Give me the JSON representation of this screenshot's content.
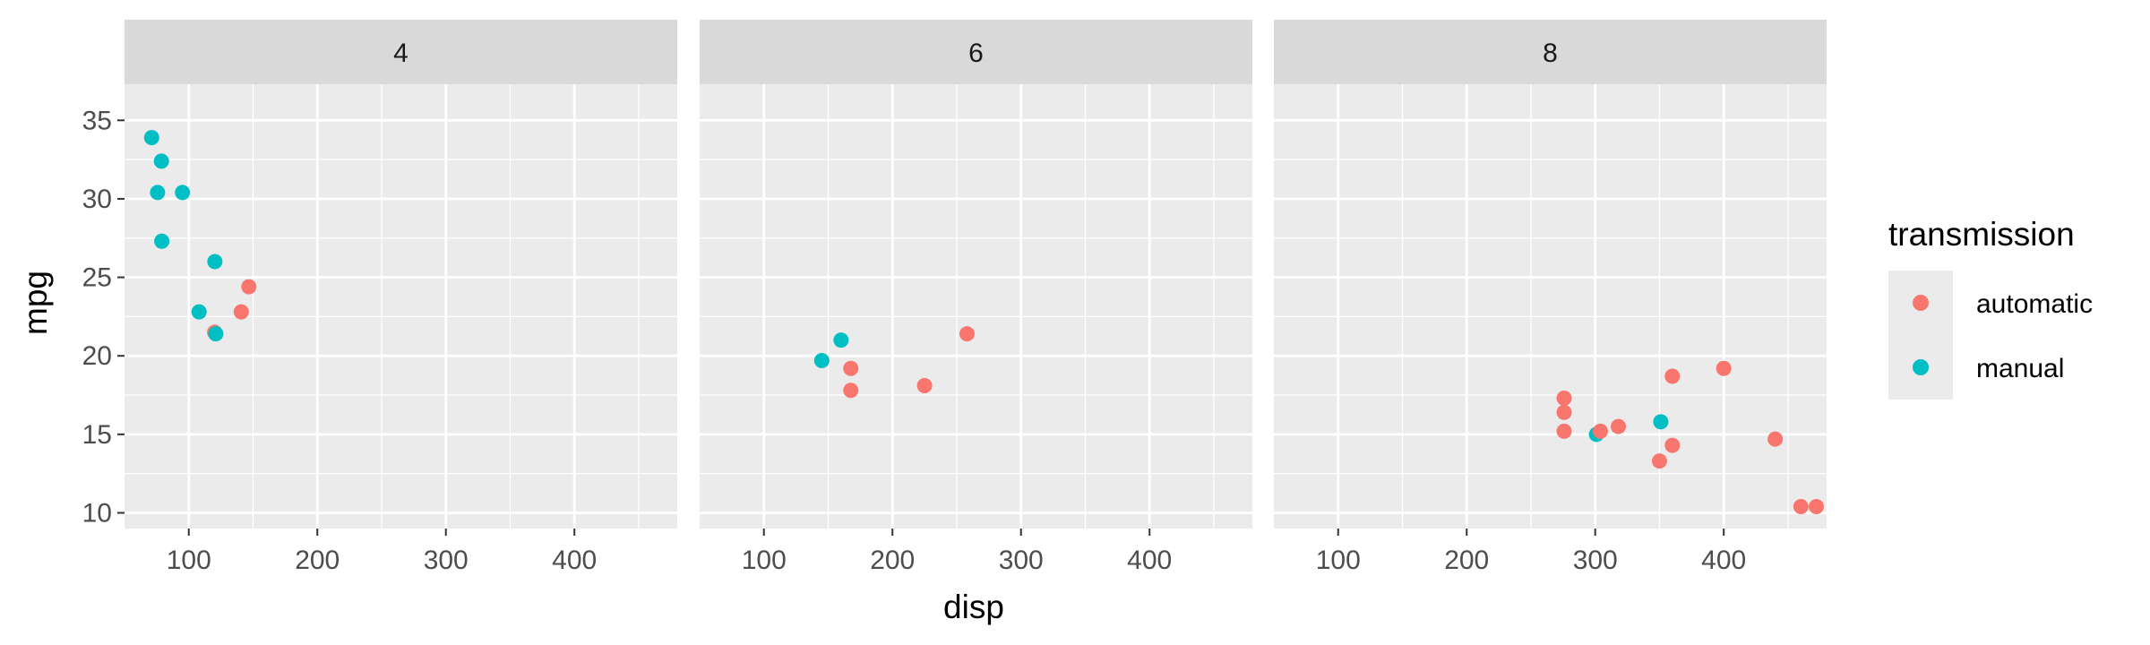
{
  "chart_data": {
    "type": "scatter",
    "xlabel": "disp",
    "ylabel": "mpg",
    "xlim": [
      50,
      480
    ],
    "ylim": [
      9,
      37.3
    ],
    "x_ticks": [
      "100",
      "200",
      "300",
      "400"
    ],
    "x_tick_values": [
      100,
      200,
      300,
      400
    ],
    "y_ticks": [
      "10",
      "15",
      "20",
      "25",
      "30",
      "35"
    ],
    "y_tick_values": [
      10,
      15,
      20,
      25,
      30,
      35
    ],
    "grid": true,
    "legend": {
      "title": "transmission",
      "placement": "right",
      "entries": [
        {
          "label": "automatic",
          "color": "#F8766D"
        },
        {
          "label": "manual",
          "color": "#00BFC4"
        }
      ]
    },
    "facets": [
      {
        "label": "4",
        "points": [
          {
            "x": 71.1,
            "y": 33.9,
            "group": "manual"
          },
          {
            "x": 75.7,
            "y": 30.4,
            "group": "manual"
          },
          {
            "x": 78.7,
            "y": 32.4,
            "group": "manual"
          },
          {
            "x": 79.0,
            "y": 27.3,
            "group": "manual"
          },
          {
            "x": 95.1,
            "y": 30.4,
            "group": "manual"
          },
          {
            "x": 108.0,
            "y": 22.8,
            "group": "manual"
          },
          {
            "x": 120.1,
            "y": 21.5,
            "group": "automatic"
          },
          {
            "x": 120.3,
            "y": 26.0,
            "group": "manual"
          },
          {
            "x": 121.0,
            "y": 21.4,
            "group": "manual"
          },
          {
            "x": 140.8,
            "y": 22.8,
            "group": "automatic"
          },
          {
            "x": 146.7,
            "y": 24.4,
            "group": "automatic"
          }
        ]
      },
      {
        "label": "6",
        "points": [
          {
            "x": 145.0,
            "y": 19.7,
            "group": "manual"
          },
          {
            "x": 160.0,
            "y": 21.0,
            "group": "manual"
          },
          {
            "x": 167.6,
            "y": 19.2,
            "group": "automatic"
          },
          {
            "x": 167.6,
            "y": 17.8,
            "group": "automatic"
          },
          {
            "x": 225.0,
            "y": 18.1,
            "group": "automatic"
          },
          {
            "x": 258.0,
            "y": 21.4,
            "group": "automatic"
          }
        ]
      },
      {
        "label": "8",
        "points": [
          {
            "x": 275.8,
            "y": 16.4,
            "group": "automatic"
          },
          {
            "x": 275.8,
            "y": 17.3,
            "group": "automatic"
          },
          {
            "x": 275.8,
            "y": 15.2,
            "group": "automatic"
          },
          {
            "x": 301.0,
            "y": 15.0,
            "group": "manual"
          },
          {
            "x": 304.0,
            "y": 15.2,
            "group": "automatic"
          },
          {
            "x": 318.0,
            "y": 15.5,
            "group": "automatic"
          },
          {
            "x": 350.0,
            "y": 13.3,
            "group": "automatic"
          },
          {
            "x": 351.0,
            "y": 15.8,
            "group": "manual"
          },
          {
            "x": 360.0,
            "y": 18.7,
            "group": "automatic"
          },
          {
            "x": 360.0,
            "y": 14.3,
            "group": "automatic"
          },
          {
            "x": 400.0,
            "y": 19.2,
            "group": "automatic"
          },
          {
            "x": 440.0,
            "y": 14.7,
            "group": "automatic"
          },
          {
            "x": 460.0,
            "y": 10.4,
            "group": "automatic"
          },
          {
            "x": 472.0,
            "y": 10.4,
            "group": "automatic"
          }
        ]
      }
    ]
  }
}
